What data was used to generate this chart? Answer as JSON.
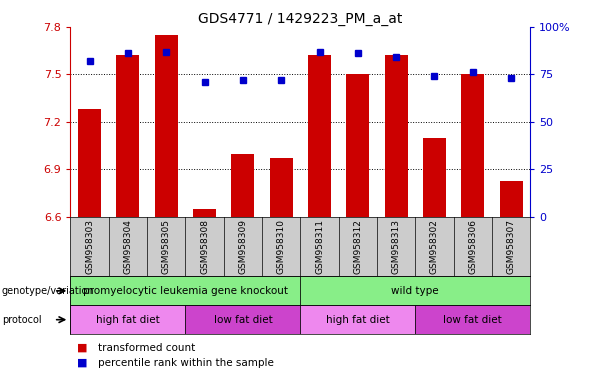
{
  "title": "GDS4771 / 1429223_PM_a_at",
  "samples": [
    "GSM958303",
    "GSM958304",
    "GSM958305",
    "GSM958308",
    "GSM958309",
    "GSM958310",
    "GSM958311",
    "GSM958312",
    "GSM958313",
    "GSM958302",
    "GSM958306",
    "GSM958307"
  ],
  "bar_values": [
    7.28,
    7.62,
    7.75,
    6.65,
    7.0,
    6.97,
    7.62,
    7.5,
    7.62,
    7.1,
    7.5,
    6.83
  ],
  "percentile_values": [
    82,
    86,
    87,
    71,
    72,
    72,
    87,
    86,
    84,
    74,
    76,
    73
  ],
  "ymin": 6.6,
  "ymax": 7.8,
  "yticks": [
    6.6,
    6.9,
    7.2,
    7.5,
    7.8
  ],
  "right_yticks": [
    0,
    25,
    50,
    75,
    100
  ],
  "right_ytick_labels": [
    "0",
    "25",
    "50",
    "75",
    "100%"
  ],
  "bar_color": "#cc0000",
  "percentile_color": "#0000cc",
  "bar_width": 0.6,
  "geno_groups": [
    {
      "label": "promyelocytic leukemia gene knockout",
      "start": 0,
      "end": 6,
      "color": "#88ee88"
    },
    {
      "label": "wild type",
      "start": 6,
      "end": 12,
      "color": "#88ee88"
    }
  ],
  "prot_groups": [
    {
      "label": "high fat diet",
      "start": 0,
      "end": 3,
      "color": "#ee88ee"
    },
    {
      "label": "low fat diet",
      "start": 3,
      "end": 6,
      "color": "#cc44cc"
    },
    {
      "label": "high fat diet",
      "start": 6,
      "end": 9,
      "color": "#ee88ee"
    },
    {
      "label": "low fat diet",
      "start": 9,
      "end": 12,
      "color": "#cc44cc"
    }
  ],
  "axis_left_color": "#cc0000",
  "axis_right_color": "#0000cc",
  "background_color": "#ffffff",
  "label_box_color": "#cccccc",
  "fig_width": 6.13,
  "fig_height": 3.84,
  "dpi": 100
}
